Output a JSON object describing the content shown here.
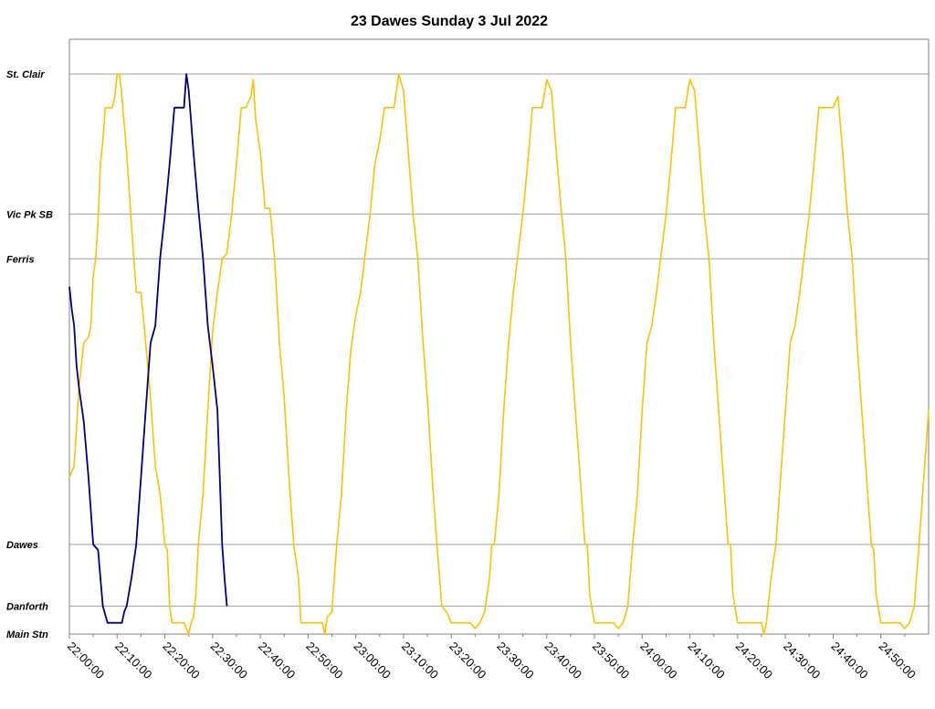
{
  "chart_data": {
    "type": "line",
    "title": "23 Dawes Sunday 3 Jul 2022",
    "colors": {
      "series_1": "#FFC000",
      "series_2": "#000080",
      "gridline": "#A0A0A0",
      "axis": "#808080"
    },
    "y_stops": [
      {
        "label": "St. Clair",
        "value": 100
      },
      {
        "label": "Vic Pk SB",
        "value": 75
      },
      {
        "label": "Ferris",
        "value": 67
      },
      {
        "label": "Dawes",
        "value": 16
      },
      {
        "label": "Danforth",
        "value": 5
      },
      {
        "label": "Main Stn",
        "value": 0
      }
    ],
    "gridlines_at": [
      "St. Clair",
      "Vic Pk SB",
      "Ferris",
      "Dawes",
      "Danforth"
    ],
    "x_ticks": [
      "22:00:00",
      "22:10:00",
      "22:20:00",
      "22:30:00",
      "22:40:00",
      "22:50:00",
      "23:00:00",
      "23:10:00",
      "23:20:00",
      "23:30:00",
      "23:40:00",
      "23:50:00",
      "24:00:00",
      "24:10:00",
      "24:20:00",
      "24:30:00",
      "24:40:00",
      "24:50:00"
    ],
    "x_unit": "minutes after 22:00:00",
    "xlim": [
      0,
      180
    ],
    "ylim": [
      0,
      100
    ],
    "series": [
      {
        "color": "#FFC000",
        "points": [
          [
            0,
            28
          ],
          [
            1,
            30
          ],
          [
            2,
            44
          ],
          [
            3,
            52
          ],
          [
            4,
            53
          ],
          [
            4.5,
            55
          ],
          [
            5,
            64
          ],
          [
            5.5,
            67
          ],
          [
            6,
            74
          ],
          [
            6.5,
            84
          ],
          [
            7,
            88
          ],
          [
            7.5,
            94
          ],
          [
            8,
            94
          ],
          [
            9,
            94
          ],
          [
            9.5,
            96
          ],
          [
            10,
            100
          ],
          [
            10.5,
            100
          ],
          [
            11,
            96
          ],
          [
            12,
            86
          ],
          [
            13,
            73
          ],
          [
            13.5,
            67
          ],
          [
            14,
            61
          ],
          [
            15,
            61
          ],
          [
            16,
            52
          ],
          [
            17,
            42
          ],
          [
            18,
            30
          ],
          [
            19,
            25
          ],
          [
            20,
            16
          ],
          [
            20.5,
            15
          ],
          [
            21,
            5
          ],
          [
            21.5,
            2
          ],
          [
            22,
            2
          ],
          [
            23,
            2
          ],
          [
            24,
            2
          ],
          [
            25,
            0
          ],
          [
            25.5,
            2
          ],
          [
            26,
            3
          ],
          [
            26.5,
            7
          ],
          [
            27,
            16
          ],
          [
            28,
            25
          ],
          [
            29,
            40
          ],
          [
            30,
            54
          ],
          [
            31,
            61
          ],
          [
            32,
            67
          ],
          [
            33,
            68
          ],
          [
            34,
            75
          ],
          [
            35,
            84
          ],
          [
            36,
            94
          ],
          [
            37,
            94
          ],
          [
            38,
            96
          ],
          [
            38.5,
            99
          ],
          [
            39,
            92
          ],
          [
            40,
            86
          ],
          [
            41,
            76
          ],
          [
            42,
            76
          ],
          [
            43,
            67
          ],
          [
            44,
            52
          ],
          [
            45,
            42
          ],
          [
            46,
            28
          ],
          [
            47,
            16
          ],
          [
            48,
            10
          ],
          [
            48.5,
            2
          ],
          [
            49,
            2
          ],
          [
            50,
            2
          ],
          [
            51,
            2
          ],
          [
            52,
            2
          ],
          [
            53,
            2
          ],
          [
            53.5,
            0
          ],
          [
            54,
            3
          ],
          [
            55,
            4
          ],
          [
            55.5,
            10
          ],
          [
            56,
            16
          ],
          [
            57,
            25
          ],
          [
            58,
            40
          ],
          [
            59,
            51
          ],
          [
            60,
            57
          ],
          [
            61,
            61
          ],
          [
            62,
            68
          ],
          [
            63,
            75
          ],
          [
            64,
            84
          ],
          [
            65,
            88
          ],
          [
            66,
            94
          ],
          [
            67,
            94
          ],
          [
            68,
            94
          ],
          [
            69,
            100
          ],
          [
            70,
            97
          ],
          [
            71,
            86
          ],
          [
            72,
            75
          ],
          [
            73,
            67
          ],
          [
            74,
            53
          ],
          [
            75,
            42
          ],
          [
            76,
            28
          ],
          [
            77,
            16
          ],
          [
            78,
            5
          ],
          [
            79,
            4
          ],
          [
            80,
            2
          ],
          [
            81,
            2
          ],
          [
            82,
            2
          ],
          [
            83,
            2
          ],
          [
            84,
            2
          ],
          [
            85,
            1
          ],
          [
            86,
            2
          ],
          [
            87,
            4
          ],
          [
            88,
            10
          ],
          [
            88.5,
            16
          ],
          [
            89,
            16
          ],
          [
            90,
            25
          ],
          [
            91,
            40
          ],
          [
            92,
            52
          ],
          [
            93,
            61
          ],
          [
            94,
            68
          ],
          [
            95,
            75
          ],
          [
            96,
            84
          ],
          [
            97,
            94
          ],
          [
            98,
            94
          ],
          [
            99,
            94
          ],
          [
            100,
            99
          ],
          [
            101,
            97
          ],
          [
            102,
            86
          ],
          [
            103,
            76
          ],
          [
            104,
            67
          ],
          [
            105,
            52
          ],
          [
            106,
            40
          ],
          [
            107,
            28
          ],
          [
            108,
            16
          ],
          [
            108.5,
            16
          ],
          [
            109,
            7
          ],
          [
            110,
            2
          ],
          [
            111,
            2
          ],
          [
            112,
            2
          ],
          [
            113,
            2
          ],
          [
            114,
            2
          ],
          [
            115,
            1
          ],
          [
            116,
            2
          ],
          [
            117,
            5
          ],
          [
            118,
            16
          ],
          [
            119,
            25
          ],
          [
            120,
            40
          ],
          [
            121,
            52
          ],
          [
            122,
            55
          ],
          [
            123,
            61
          ],
          [
            124,
            68
          ],
          [
            125,
            75
          ],
          [
            126,
            84
          ],
          [
            127,
            94
          ],
          [
            128,
            94
          ],
          [
            129,
            94
          ],
          [
            130,
            99
          ],
          [
            131,
            97
          ],
          [
            132,
            86
          ],
          [
            133,
            75
          ],
          [
            134,
            67
          ],
          [
            135,
            52
          ],
          [
            136,
            40
          ],
          [
            137,
            28
          ],
          [
            138,
            16
          ],
          [
            138.5,
            16
          ],
          [
            139,
            7
          ],
          [
            140,
            2
          ],
          [
            141,
            2
          ],
          [
            142,
            2
          ],
          [
            143,
            2
          ],
          [
            144,
            2
          ],
          [
            145,
            2
          ],
          [
            145.5,
            0
          ],
          [
            146,
            2
          ],
          [
            147,
            10
          ],
          [
            148,
            16
          ],
          [
            149,
            28
          ],
          [
            150,
            40
          ],
          [
            151,
            52
          ],
          [
            152,
            55
          ],
          [
            153,
            61
          ],
          [
            154,
            68
          ],
          [
            155,
            75
          ],
          [
            156,
            84
          ],
          [
            157,
            94
          ],
          [
            158,
            94
          ],
          [
            159,
            94
          ],
          [
            160,
            94
          ],
          [
            161,
            96
          ],
          [
            162,
            86
          ],
          [
            163,
            75
          ],
          [
            164,
            67
          ],
          [
            165,
            52
          ],
          [
            166,
            40
          ],
          [
            167,
            28
          ],
          [
            168,
            16
          ],
          [
            168.5,
            15
          ],
          [
            169,
            7
          ],
          [
            170,
            2
          ],
          [
            171,
            2
          ],
          [
            172,
            2
          ],
          [
            173,
            2
          ],
          [
            174,
            2
          ],
          [
            175,
            1
          ],
          [
            176,
            2
          ],
          [
            177,
            5
          ],
          [
            178,
            16
          ],
          [
            179,
            28
          ],
          [
            180,
            40
          ]
        ]
      },
      {
        "color": "#000080",
        "points": [
          [
            0,
            62
          ],
          [
            0.5,
            58
          ],
          [
            1,
            55
          ],
          [
            1.5,
            48
          ],
          [
            2,
            44
          ],
          [
            3,
            38
          ],
          [
            4,
            28
          ],
          [
            5,
            16
          ],
          [
            6,
            15
          ],
          [
            7,
            5
          ],
          [
            8,
            2
          ],
          [
            9,
            2
          ],
          [
            10,
            2
          ],
          [
            10.5,
            2
          ],
          [
            11,
            2
          ],
          [
            11.5,
            4
          ],
          [
            12,
            5
          ],
          [
            13,
            10
          ],
          [
            14,
            16
          ],
          [
            15,
            28
          ],
          [
            16,
            40
          ],
          [
            17,
            52
          ],
          [
            18,
            55
          ],
          [
            19,
            67
          ],
          [
            20,
            75
          ],
          [
            21,
            84
          ],
          [
            22,
            94
          ],
          [
            23,
            94
          ],
          [
            24,
            94
          ],
          [
            24.5,
            100
          ],
          [
            25,
            97
          ],
          [
            26,
            86
          ],
          [
            27,
            76
          ],
          [
            28,
            67
          ],
          [
            29,
            55
          ],
          [
            30,
            48
          ],
          [
            31,
            40
          ],
          [
            31.5,
            28
          ],
          [
            32,
            16
          ],
          [
            32.5,
            10
          ],
          [
            33,
            5
          ]
        ]
      }
    ]
  }
}
